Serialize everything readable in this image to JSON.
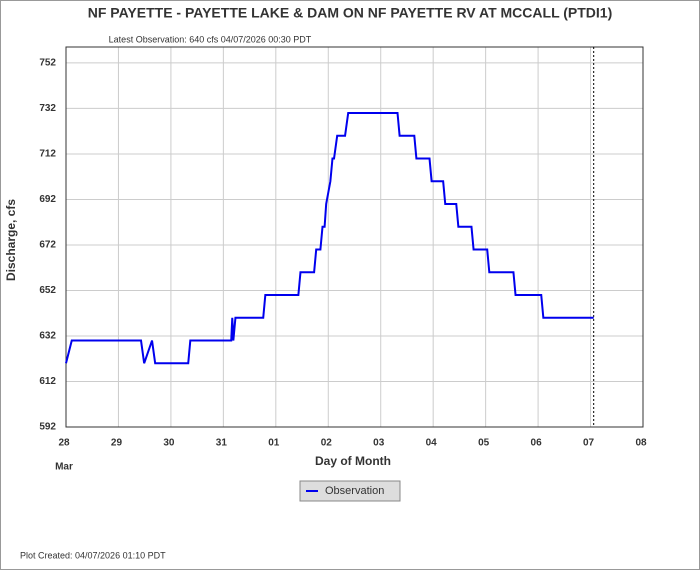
{
  "chart_data": {
    "type": "line",
    "title": "NF PAYETTE - PAYETTE LAKE & DAM ON NF PAYETTE RV AT MCCALL  (PTDI1)",
    "subtitle": "Latest Observation: 640 cfs 04/07/2026 00:30 PDT",
    "x_label": "Day of Month",
    "x_sublabel": "Mar",
    "y_label": "Discharge, cfs",
    "footer": "Plot Created: 04/07/2026 01:10 PDT",
    "xlim": [
      0,
      11
    ],
    "xticks": [
      {
        "value": 0,
        "label": "28"
      },
      {
        "value": 1,
        "label": "29"
      },
      {
        "value": 2,
        "label": "30"
      },
      {
        "value": 3,
        "label": "31"
      },
      {
        "value": 4,
        "label": "01"
      },
      {
        "value": 5,
        "label": "02"
      },
      {
        "value": 6,
        "label": "03"
      },
      {
        "value": 7,
        "label": "04"
      },
      {
        "value": 8,
        "label": "05"
      },
      {
        "value": 9,
        "label": "06"
      },
      {
        "value": 10,
        "label": "07"
      },
      {
        "value": 11,
        "label": "08"
      }
    ],
    "ylim": [
      592,
      759
    ],
    "yticks": [
      592,
      612,
      632,
      652,
      672,
      692,
      712,
      732,
      752
    ],
    "grid": true,
    "now_x": 10.06,
    "series": [
      {
        "name": "Observation",
        "color": "#0000ee",
        "x": [
          0,
          0.11,
          1.43,
          1.49,
          1.64,
          1.7,
          2.33,
          2.37,
          3.15,
          3.17,
          3.19,
          3.23,
          3.76,
          3.8,
          4.43,
          4.47,
          4.73,
          4.77,
          4.85,
          4.89,
          4.93,
          4.96,
          5.04,
          5.08,
          5.11,
          5.17,
          5.32,
          5.38,
          6.32,
          6.36,
          6.64,
          6.68,
          6.93,
          6.97,
          7.19,
          7.23,
          7.44,
          7.48,
          7.73,
          7.77,
          8.03,
          8.07,
          8.53,
          8.57,
          9.06,
          9.1,
          10.06
        ],
        "values": [
          620,
          630,
          630,
          620,
          630,
          620,
          620,
          630,
          630,
          640,
          630,
          640,
          640,
          650,
          650,
          660,
          660,
          670,
          670,
          680,
          680,
          690,
          700,
          710,
          710,
          720,
          720,
          730,
          730,
          720,
          720,
          710,
          710,
          700,
          700,
          690,
          690,
          680,
          680,
          670,
          670,
          660,
          660,
          650,
          650,
          640,
          640
        ]
      }
    ]
  }
}
